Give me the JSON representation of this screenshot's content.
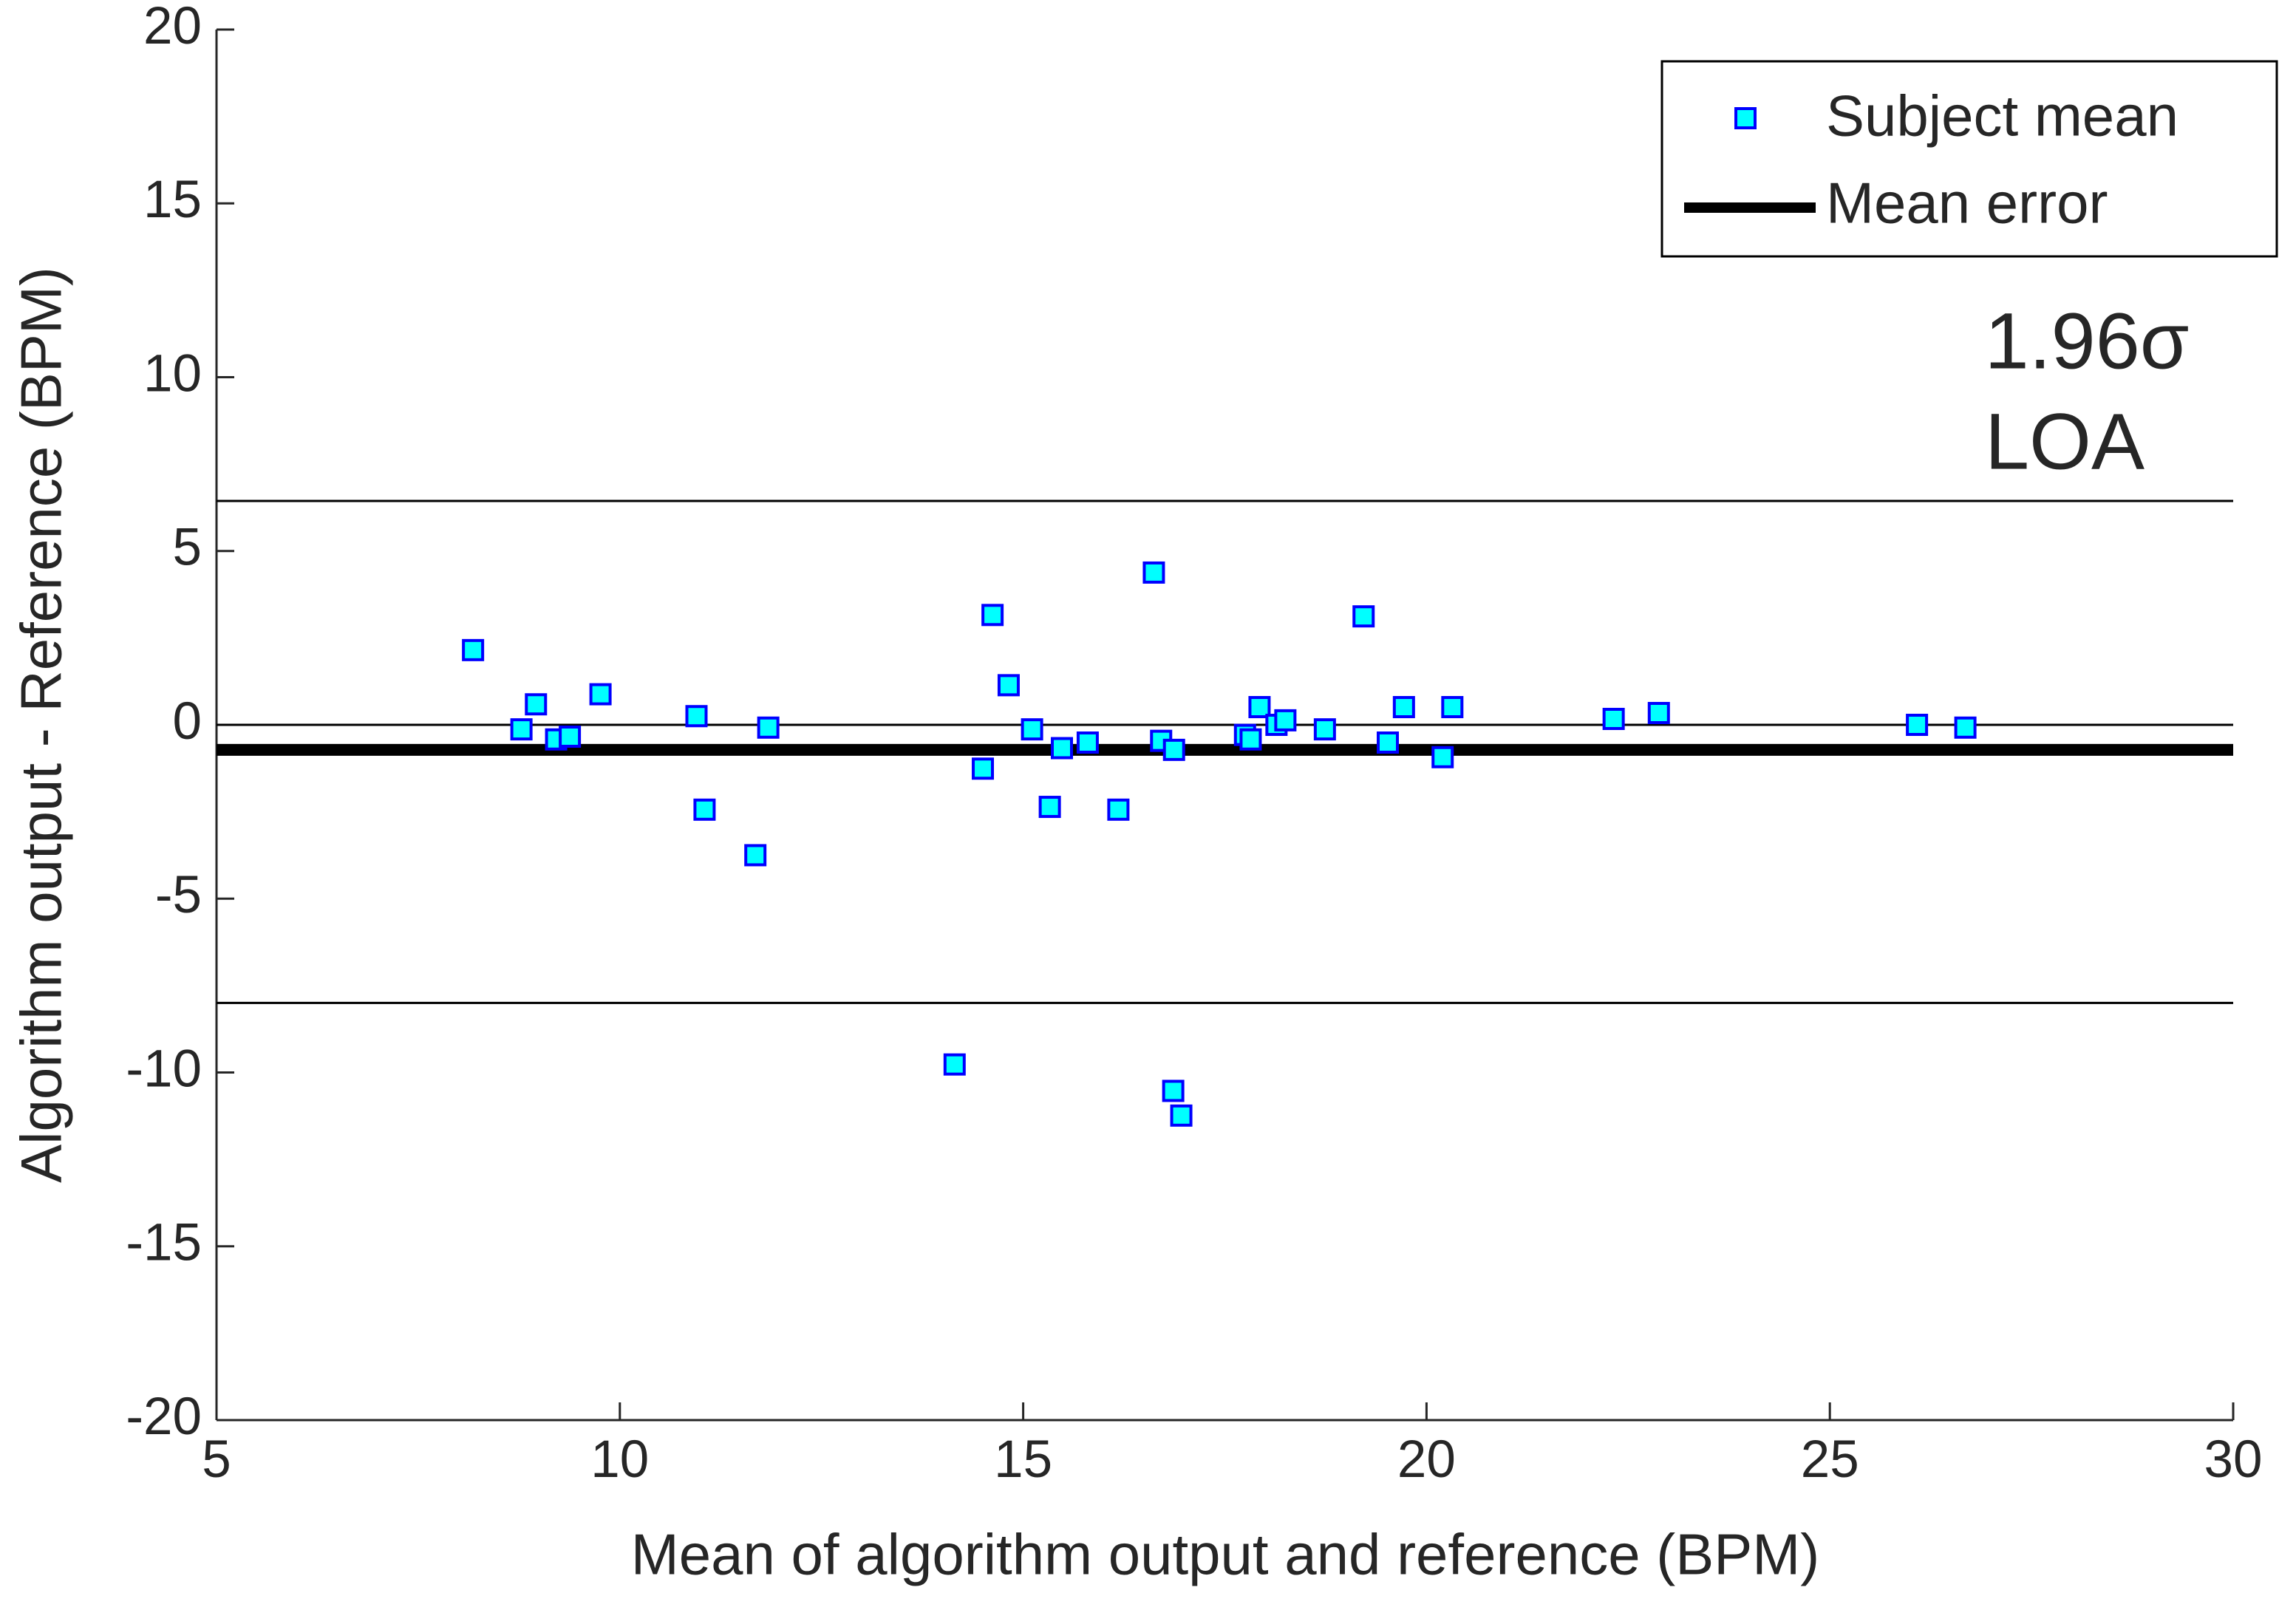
{
  "chart_data": {
    "type": "scatter",
    "xlabel": "Mean of algorithm output and reference (BPM)",
    "ylabel": "Algorithm output - Reference (BPM)",
    "xlim": [
      5,
      30
    ],
    "ylim": [
      -20,
      20
    ],
    "xticks": [
      5,
      10,
      15,
      20,
      25,
      30
    ],
    "yticks": [
      -20,
      -15,
      -10,
      -5,
      0,
      5,
      10,
      15,
      20
    ],
    "legend": "upper right",
    "series": [
      {
        "name": "Subject mean",
        "color": "#00ffff",
        "x": [
          8.18,
          8.78,
          8.96,
          9.21,
          9.38,
          9.76,
          10.95,
          11.05,
          11.68,
          11.84,
          14.15,
          14.5,
          14.62,
          14.82,
          15.11,
          15.33,
          15.48,
          15.8,
          16.18,
          16.62,
          16.71,
          16.86,
          16.87,
          16.96,
          17.75,
          17.82,
          17.93,
          18.14,
          18.25,
          18.74,
          19.22,
          19.52,
          19.72,
          20.2,
          20.32,
          22.32,
          22.88,
          26.08,
          26.68
        ],
        "values": [
          2.15,
          -0.13,
          0.59,
          -0.42,
          -0.34,
          0.88,
          0.25,
          -2.44,
          -3.75,
          -0.08,
          -9.77,
          -1.26,
          3.16,
          1.14,
          -0.13,
          -2.36,
          -0.67,
          -0.51,
          -2.44,
          4.38,
          -0.46,
          -10.53,
          -0.72,
          -11.24,
          -0.29,
          -0.42,
          0.51,
          0,
          0.13,
          -0.13,
          3.12,
          -0.51,
          0.51,
          -0.93,
          0.51,
          0.17,
          0.34,
          0,
          -0.08
        ]
      }
    ],
    "mean_error": {
      "name": "Mean error",
      "value": -0.72,
      "color": "#000000"
    },
    "loa_lines": [
      6.44,
      -8.0
    ],
    "zero_line": 0,
    "annotations": [
      "1.96σ",
      "LOA"
    ]
  }
}
